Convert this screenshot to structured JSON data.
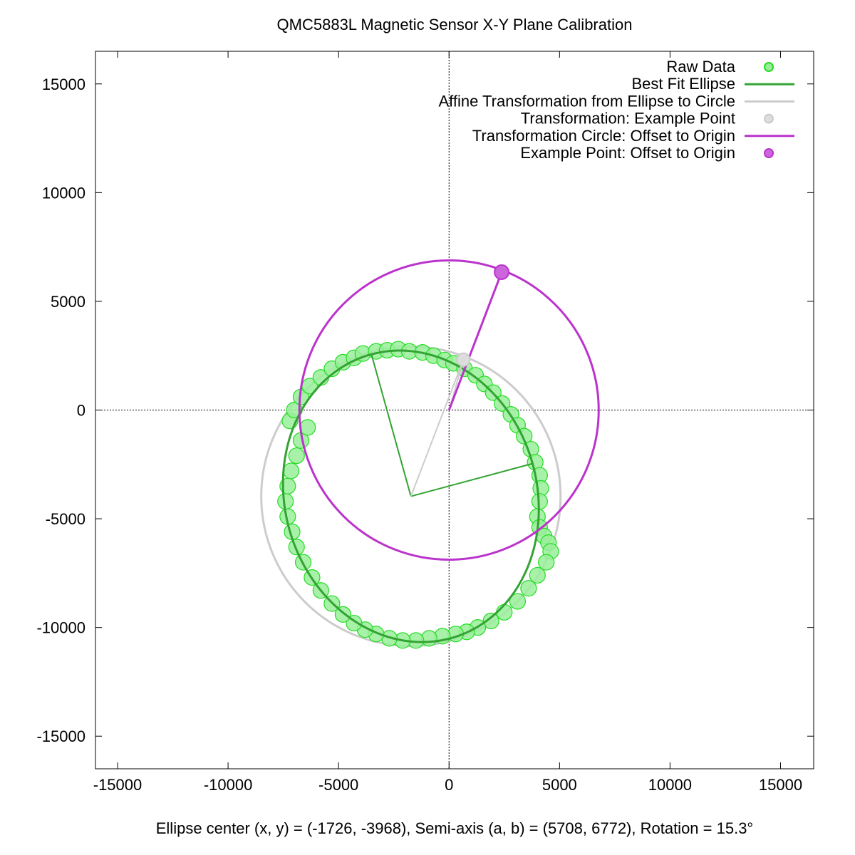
{
  "chart_data": {
    "type": "scatter",
    "title": "QMC5883L Magnetic Sensor X-Y Plane Calibration",
    "xlabel": "Ellipse center (x, y) = (-1726, -3968), Semi-axis (a, b) = (5708, 6772), Rotation = 15.3°",
    "ylabel": "",
    "xlim": [
      -16000,
      16500
    ],
    "ylim": [
      -16500,
      16500
    ],
    "xticks": [
      -15000,
      -10000,
      -5000,
      0,
      5000,
      10000,
      15000
    ],
    "yticks": [
      -15000,
      -10000,
      -5000,
      0,
      5000,
      10000,
      15000
    ],
    "xtick_labels": [
      "-15000",
      "-10000",
      "-5000",
      "0",
      "5000",
      "10000",
      "15000"
    ],
    "ytick_labels": [
      "-15000",
      "-10000",
      "-5000",
      "0",
      "5000",
      "10000",
      "15000"
    ],
    "grid": false,
    "zero_axes": true,
    "legend_position": "top-right",
    "ellipse": {
      "center": [
        -1726,
        -3968
      ],
      "semi_axes": [
        5708,
        6772
      ],
      "rotation_deg": 15.3
    },
    "affine_circle": {
      "center": [
        -1726,
        -3968
      ],
      "radius": 6772
    },
    "origin_circle": {
      "center": [
        0,
        0
      ],
      "radius": 6772
    },
    "example_point": {
      "transformed": [
        650,
        2320
      ],
      "offset": [
        2380,
        6340
      ]
    },
    "series": [
      {
        "name": "Raw Data",
        "style": "points",
        "color": "#22dd22",
        "fill": "#99ee99"
      },
      {
        "name": "Best Fit Ellipse",
        "style": "line",
        "color": "#33a333"
      },
      {
        "name": "Affine Transformation from Ellipse to Circle",
        "style": "line",
        "color": "#cccccc"
      },
      {
        "name": "Transformation: Example Point",
        "style": "points",
        "color": "#cccccc"
      },
      {
        "name": "Transformation Circle: Offset to Origin",
        "style": "line",
        "color": "#bb33cc"
      },
      {
        "name": "Example Point: Offset to Origin",
        "style": "points",
        "color": "#bb33cc"
      }
    ],
    "raw_points": {
      "x": [
        -7200,
        -7000,
        -6700,
        -6300,
        -5800,
        -5300,
        -4800,
        -4300,
        -3900,
        -3300,
        -2800,
        -2300,
        -1800,
        -1200,
        -700,
        -200,
        200,
        700,
        1200,
        1600,
        2000,
        2400,
        2800,
        3100,
        3400,
        3700,
        3900,
        4100,
        4150,
        4100,
        4000,
        4100,
        4300,
        4500,
        4600,
        4400,
        4000,
        3600,
        3100,
        2500,
        1900,
        1300,
        800,
        300,
        -300,
        -900,
        -1500,
        -2100,
        -2700,
        -3300,
        -3800,
        -4300,
        -4800,
        -5300,
        -5800,
        -6200,
        -6600,
        -6900,
        -7100,
        -7300,
        -7400,
        -7300,
        -7150,
        -6900,
        -6700,
        -6400
      ],
      "y": [
        -500,
        0,
        600,
        1100,
        1500,
        1900,
        2200,
        2400,
        2600,
        2700,
        2750,
        2800,
        2700,
        2650,
        2500,
        2300,
        2150,
        1900,
        1600,
        1200,
        800,
        300,
        -200,
        -700,
        -1200,
        -1800,
        -2400,
        -3000,
        -3600,
        -4200,
        -4900,
        -5400,
        -5800,
        -6100,
        -6500,
        -7000,
        -7600,
        -8200,
        -8800,
        -9300,
        -9700,
        -10000,
        -10200,
        -10300,
        -10400,
        -10500,
        -10600,
        -10600,
        -10500,
        -10300,
        -10100,
        -9800,
        -9400,
        -8900,
        -8300,
        -7700,
        -7000,
        -6300,
        -5600,
        -4900,
        -4200,
        -3500,
        -2800,
        -2100,
        -1400,
        -800
      ]
    }
  }
}
